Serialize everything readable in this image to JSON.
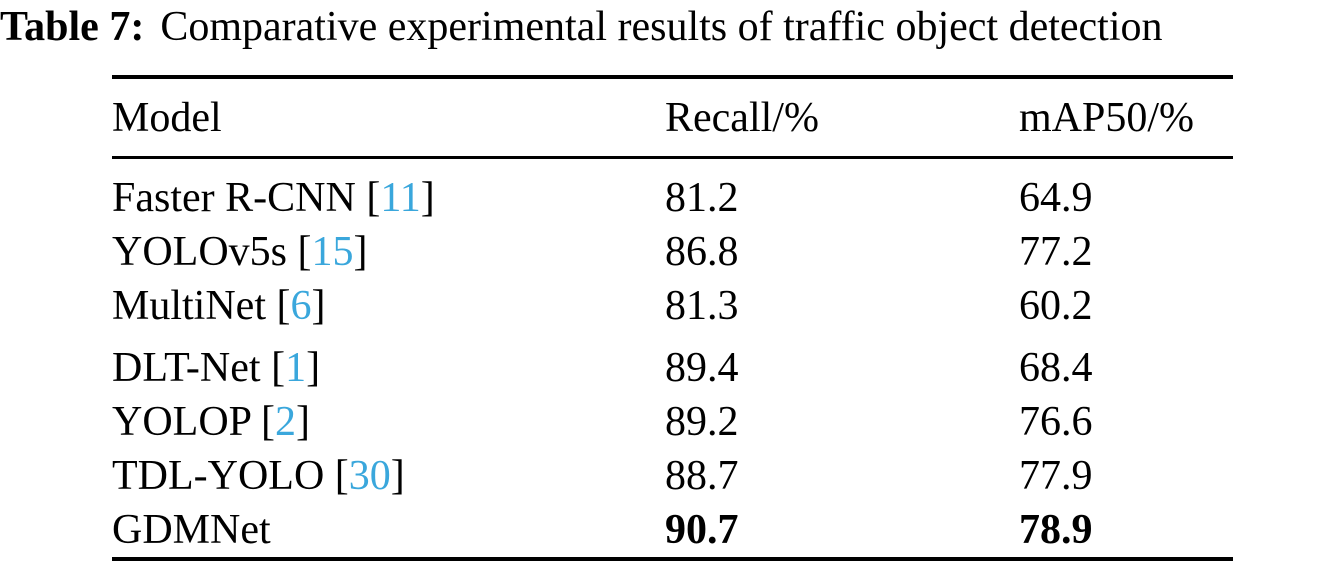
{
  "caption": {
    "label": "Table 7:",
    "text": "Comparative experimental results of traffic object detection"
  },
  "table": {
    "columns": [
      "Model",
      "Recall/%",
      "mAP50/%"
    ],
    "citation_color": "#3AA7DC",
    "rows": [
      {
        "model": "Faster R-CNN",
        "cite_open": " [",
        "cite": "11",
        "cite_close": "]",
        "recall": "81.2",
        "map50": "64.9",
        "bold": false
      },
      {
        "model": "YOLOv5s",
        "cite_open": " [",
        "cite": "15",
        "cite_close": "]",
        "recall": "86.8",
        "map50": "77.2",
        "bold": false
      },
      {
        "model": "MultiNet",
        "cite_open": " [",
        "cite": "6",
        "cite_close": "]",
        "recall": "81.3",
        "map50": "60.2",
        "bold": false
      },
      {
        "model": "DLT-Net",
        "cite_open": " [",
        "cite": "1",
        "cite_close": "]",
        "recall": "89.4",
        "map50": "68.4",
        "bold": false
      },
      {
        "model": "YOLOP",
        "cite_open": " [",
        "cite": "2",
        "cite_close": "]",
        "recall": "89.2",
        "map50": "76.6",
        "bold": false
      },
      {
        "model": "TDL-YOLO",
        "cite_open": " [",
        "cite": "30",
        "cite_close": "]",
        "recall": "88.7",
        "map50": "77.9",
        "bold": false
      },
      {
        "model": "GDMNet",
        "recall": "90.7",
        "map50": "78.9",
        "bold": true
      }
    ]
  }
}
